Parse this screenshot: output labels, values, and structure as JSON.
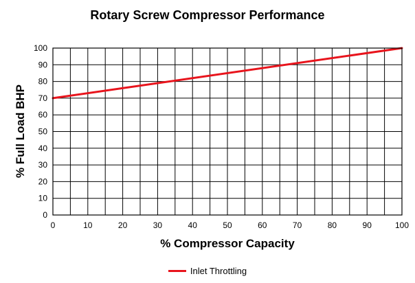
{
  "chart_data": {
    "type": "line",
    "title": "Rotary Screw Compressor Performance",
    "xlabel": "% Compressor Capacity",
    "ylabel": "% Full Load BHP",
    "xlim": [
      0,
      100
    ],
    "ylim": [
      0,
      100
    ],
    "x_ticks": [
      0,
      10,
      20,
      30,
      40,
      50,
      60,
      70,
      80,
      90,
      100
    ],
    "y_ticks": [
      0,
      10,
      20,
      30,
      40,
      50,
      60,
      70,
      80,
      90,
      100
    ],
    "grid": true,
    "minor_x_grid_step": 5,
    "legend_position": "bottom-center",
    "series": [
      {
        "name": "Inlet Throttling",
        "color": "#e8141c",
        "x": [
          0,
          100
        ],
        "y": [
          70,
          100
        ]
      }
    ]
  }
}
